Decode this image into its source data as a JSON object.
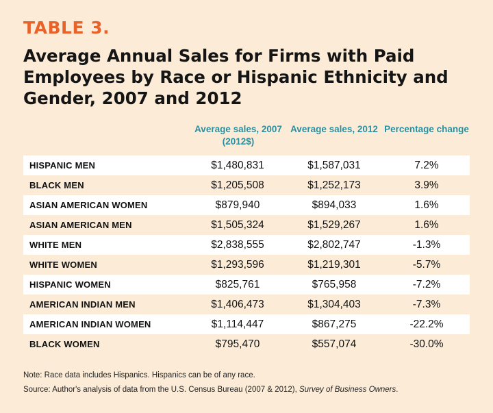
{
  "table_label": "TABLE 3.",
  "title": "Average Annual Sales for Firms with Paid Employees by Race or Hispanic Ethnicity and Gender, 2007 and 2012",
  "columns": {
    "col1": "Average sales, 2007 (2012$)",
    "col2": "Average sales, 2012",
    "col3": "Percentage change"
  },
  "rows": [
    {
      "label": "HISPANIC MEN",
      "sales_2007": "$1,480,831",
      "sales_2012": "$1,587,031",
      "pct_change": "7.2%"
    },
    {
      "label": "BLACK MEN",
      "sales_2007": "$1,205,508",
      "sales_2012": "$1,252,173",
      "pct_change": "3.9%"
    },
    {
      "label": "ASIAN AMERICAN WOMEN",
      "sales_2007": "$879,940",
      "sales_2012": "$894,033",
      "pct_change": "1.6%"
    },
    {
      "label": "ASIAN AMERICAN MEN",
      "sales_2007": "$1,505,324",
      "sales_2012": "$1,529,267",
      "pct_change": "1.6%"
    },
    {
      "label": "WHITE MEN",
      "sales_2007": "$2,838,555",
      "sales_2012": "$2,802,747",
      "pct_change": "-1.3%"
    },
    {
      "label": "WHITE WOMEN",
      "sales_2007": "$1,293,596",
      "sales_2012": "$1,219,301",
      "pct_change": "-5.7%"
    },
    {
      "label": "HISPANIC WOMEN",
      "sales_2007": "$825,761",
      "sales_2012": "$765,958",
      "pct_change": "-7.2%"
    },
    {
      "label": "AMERICAN INDIAN MEN",
      "sales_2007": "$1,406,473",
      "sales_2012": "$1,304,403",
      "pct_change": "-7.3%"
    },
    {
      "label": "AMERICAN INDIAN WOMEN",
      "sales_2007": "$1,114,447",
      "sales_2012": "$867,275",
      "pct_change": "-22.2%"
    },
    {
      "label": "BLACK WOMEN",
      "sales_2007": "$795,470",
      "sales_2012": "$557,074",
      "pct_change": "-30.0%"
    }
  ],
  "notes": {
    "note": "Note: Race data includes Hispanics. Hispanics can be of any race.",
    "source_prefix": "Source: Author's analysis of data from the U.S. Census Bureau (2007 & 2012), ",
    "source_title": "Survey of Business Owners",
    "source_suffix": "."
  },
  "colors": {
    "background": "#fcecd7",
    "accent_orange": "#e8622a",
    "header_teal": "#2a8fa0",
    "row_shade": "#ffffff"
  }
}
